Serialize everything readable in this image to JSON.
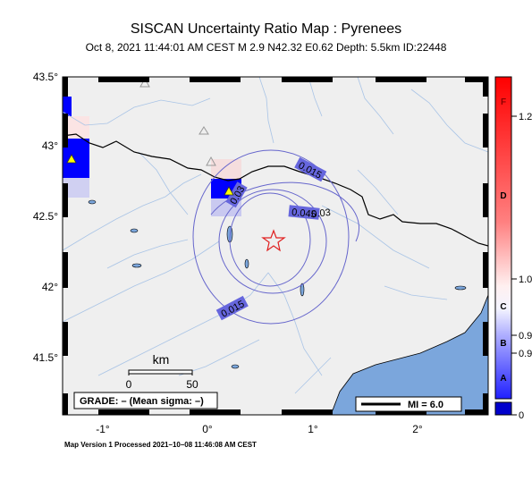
{
  "header": {
    "title": "SISCAN Uncertainty Ratio Map : Pyrenees",
    "subtitle": "Oct  8, 2021 11:44:01 AM CEST   M 2.9    N42.32 E0.62    Depth: 5.5km    ID:22448"
  },
  "axes": {
    "lat_ticks": [
      "43.5°",
      "43°",
      "42.5°",
      "42°",
      "41.5°"
    ],
    "lon_ticks": [
      "-1°",
      "0°",
      "1°",
      "2°"
    ]
  },
  "contours": [
    {
      "label": "0.015"
    },
    {
      "label": "0.03"
    },
    {
      "label": "0.045"
    },
    {
      "label": "0.03"
    },
    {
      "label": "0.015"
    }
  ],
  "scale_bar": {
    "unit": "km",
    "labels": [
      "0",
      "50"
    ]
  },
  "grade_box": {
    "text": "GRADE: – (Mean sigma: –)"
  },
  "mi_legend": {
    "text": "MI = 6.0"
  },
  "colorbar": {
    "letters": [
      "F",
      "D",
      "C",
      "B",
      "A"
    ],
    "values": [
      "1.2",
      "1.0",
      "0.9",
      "0.9",
      "0"
    ]
  },
  "footer": {
    "text": "Map Version 1 Processed 2021–10–08 11:46:08 AM CEST"
  },
  "colors": {
    "land": "#efefef",
    "sea": "#7ba6dc",
    "rivers": "#a9c4e6",
    "border": "#000000",
    "contour": "#6666cc",
    "cell_blue": "#0000ff",
    "epicenter": "#e02020",
    "station": "#ffff00"
  }
}
